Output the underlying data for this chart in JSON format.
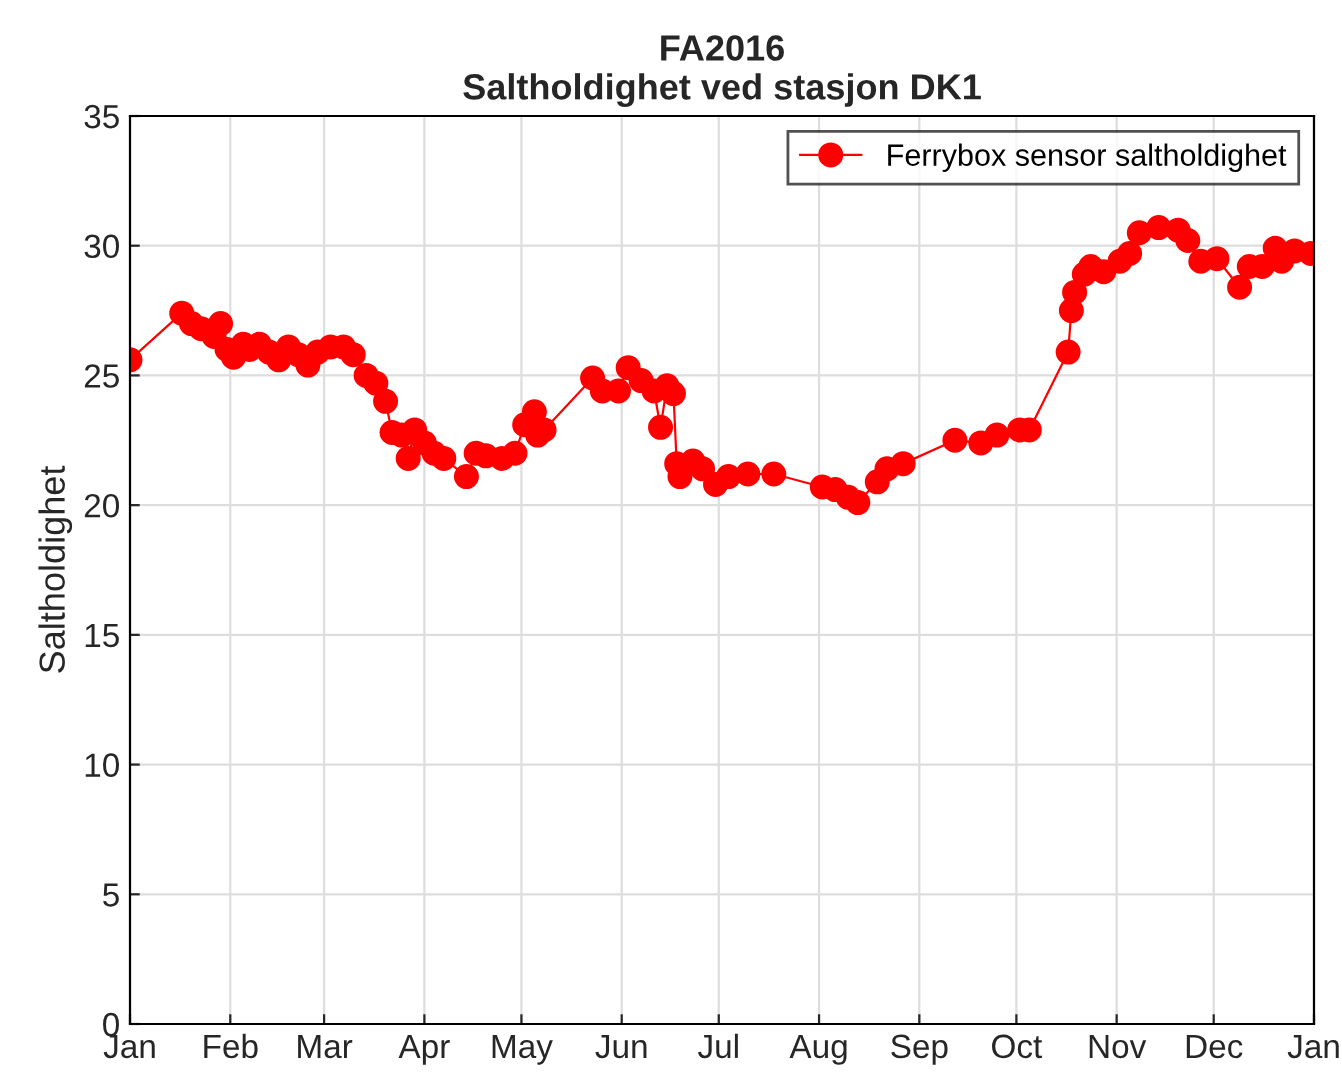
{
  "chart_data": {
    "type": "line",
    "title": "FA2016\nSaltholdighet ved stasjon DK1",
    "ylabel": "Saltholdighet",
    "x": [
      "2016-01-01",
      "2016-01-17",
      "2016-01-20",
      "2016-01-23",
      "2016-01-27",
      "2016-01-29",
      "2016-01-31",
      "2016-02-02",
      "2016-02-05",
      "2016-02-07",
      "2016-02-10",
      "2016-02-13",
      "2016-02-16",
      "2016-02-19",
      "2016-02-22",
      "2016-02-25",
      "2016-02-28",
      "2016-03-03",
      "2016-03-07",
      "2016-03-10",
      "2016-03-14",
      "2016-03-17",
      "2016-03-20",
      "2016-03-22",
      "2016-03-25",
      "2016-03-27",
      "2016-03-29",
      "2016-04-01",
      "2016-04-04",
      "2016-04-07",
      "2016-04-14",
      "2016-04-17",
      "2016-04-20",
      "2016-04-25",
      "2016-04-29",
      "2016-05-02",
      "2016-05-05",
      "2016-05-06",
      "2016-05-08",
      "2016-05-23",
      "2016-05-26",
      "2016-05-31",
      "2016-06-03",
      "2016-06-07",
      "2016-06-11",
      "2016-06-13",
      "2016-06-15",
      "2016-06-17",
      "2016-06-18",
      "2016-06-19",
      "2016-06-23",
      "2016-06-26",
      "2016-06-30",
      "2016-07-04",
      "2016-07-10",
      "2016-07-18",
      "2016-08-02",
      "2016-08-06",
      "2016-08-10",
      "2016-08-13",
      "2016-08-19",
      "2016-08-22",
      "2016-08-27",
      "2016-09-12",
      "2016-09-20",
      "2016-09-25",
      "2016-10-02",
      "2016-10-05",
      "2016-10-17",
      "2016-10-18",
      "2016-10-19",
      "2016-10-22",
      "2016-10-24",
      "2016-10-28",
      "2016-11-02",
      "2016-11-05",
      "2016-11-08",
      "2016-11-14",
      "2016-11-20",
      "2016-11-23",
      "2016-11-27",
      "2016-12-02",
      "2016-12-09",
      "2016-12-12",
      "2016-12-16",
      "2016-12-20",
      "2016-12-22",
      "2016-12-26",
      "2016-12-31"
    ],
    "series": [
      {
        "name": "Ferrybox sensor saltholdighet",
        "color": "#ff0000",
        "values": [
          25.6,
          27.4,
          27.0,
          26.8,
          26.5,
          27.0,
          26.0,
          25.7,
          26.2,
          26.0,
          26.2,
          25.9,
          25.6,
          26.1,
          25.8,
          25.4,
          25.9,
          26.1,
          26.1,
          25.8,
          25.0,
          24.7,
          24.0,
          22.8,
          22.7,
          21.8,
          22.9,
          22.4,
          22.0,
          21.8,
          21.1,
          22.0,
          21.9,
          21.8,
          22.0,
          23.1,
          23.6,
          22.7,
          22.9,
          24.9,
          24.4,
          24.4,
          25.3,
          24.8,
          24.4,
          23.0,
          24.6,
          24.3,
          21.6,
          21.1,
          21.7,
          21.4,
          20.8,
          21.1,
          21.2,
          21.2,
          20.7,
          20.6,
          20.3,
          20.1,
          20.9,
          21.4,
          21.6,
          22.5,
          22.4,
          22.7,
          22.9,
          22.9,
          25.9,
          27.5,
          28.2,
          28.9,
          29.2,
          29.0,
          29.4,
          29.7,
          30.5,
          30.7,
          30.6,
          30.2,
          29.4,
          29.5,
          28.4,
          29.2,
          29.2,
          29.9,
          29.4,
          29.8,
          29.7
        ]
      }
    ],
    "xlim": [
      "2016-01-01",
      "2017-01-01"
    ],
    "xticks": [
      {
        "value": "2016-01-01",
        "label": "Jan"
      },
      {
        "value": "2016-02-01",
        "label": "Feb"
      },
      {
        "value": "2016-03-01",
        "label": "Mar"
      },
      {
        "value": "2016-04-01",
        "label": "Apr"
      },
      {
        "value": "2016-05-01",
        "label": "May"
      },
      {
        "value": "2016-06-01",
        "label": "Jun"
      },
      {
        "value": "2016-07-01",
        "label": "Jul"
      },
      {
        "value": "2016-08-01",
        "label": "Aug"
      },
      {
        "value": "2016-09-01",
        "label": "Sep"
      },
      {
        "value": "2016-10-01",
        "label": "Oct"
      },
      {
        "value": "2016-11-01",
        "label": "Nov"
      },
      {
        "value": "2016-12-01",
        "label": "Dec"
      },
      {
        "value": "2017-01-01",
        "label": "Jan"
      }
    ],
    "ylim": [
      0,
      35
    ],
    "yticks": [
      0,
      5,
      10,
      15,
      20,
      25,
      30,
      35
    ],
    "grid": true,
    "legend": "top right",
    "marker": "circle",
    "line_style": "solid"
  }
}
